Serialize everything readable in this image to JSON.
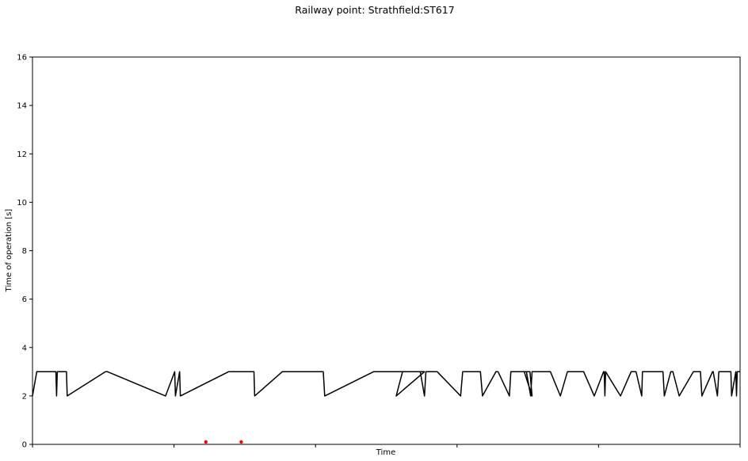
{
  "chart_data": {
    "type": "line",
    "title": "Railway point: Strathfield:ST617",
    "xlabel": "Time",
    "ylabel": "Time of operation [s]",
    "ylim": [
      0,
      16
    ],
    "yticks": [
      0,
      2,
      4,
      6,
      8,
      10,
      12,
      14,
      16
    ],
    "xlim": [
      0,
      100
    ],
    "xtick_positions": [
      0,
      20,
      40,
      60,
      80,
      100
    ],
    "grid": false,
    "series": [
      {
        "color": "#000000",
        "style": "line",
        "x": [
          0,
          0.6,
          3.3,
          3.4,
          3.5,
          4.8,
          4.9,
          10.3,
          10.6,
          18.8,
          20.1,
          20.2,
          20.8,
          20.9,
          27.7,
          31.3,
          31.4,
          35.3,
          41.1,
          41.3,
          48.2,
          55.4,
          51.4,
          52.3,
          54.8,
          55.4,
          55.6,
          57.2,
          60.5,
          60.8,
          63.3,
          63.6,
          65.5,
          65.8,
          67.4,
          67.6,
          70.3,
          70.6,
          69.5,
          69.8,
          70.4,
          70.6,
          73.2,
          74.6,
          75.6,
          77.9,
          79.4,
          80.7,
          80.8,
          80.9,
          81.0,
          83.1,
          84.6,
          85.3,
          86.1,
          86.2,
          89.1,
          89.3,
          90.2,
          90.5,
          91.4,
          93.4,
          94.4,
          94.6,
          96.1,
          96.2,
          96.8,
          97.0,
          98.7,
          98.8,
          99.4,
          99.5,
          99.6,
          100
        ],
        "y": [
          2,
          3,
          3,
          2,
          3,
          3,
          2,
          3,
          3,
          2,
          3,
          2,
          3,
          2,
          3,
          3,
          2,
          3,
          3,
          2,
          3,
          3,
          2,
          3,
          3,
          2,
          3,
          3,
          2,
          3,
          3,
          2,
          3,
          3,
          2,
          3,
          3,
          2,
          3,
          3,
          2,
          3,
          3,
          2,
          3,
          3,
          2,
          3,
          3,
          2,
          3,
          2,
          3,
          3,
          2,
          3,
          3,
          2,
          3,
          3,
          2,
          3,
          3,
          2,
          3,
          3,
          2,
          3,
          3,
          2,
          3,
          2,
          3,
          3
        ]
      },
      {
        "color": "#ff0000",
        "style": "points",
        "x": [
          24.5,
          29.5
        ],
        "y": [
          0.1,
          0.1
        ]
      }
    ]
  }
}
